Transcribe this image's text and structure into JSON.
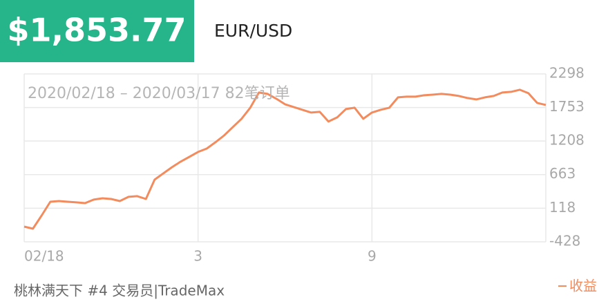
{
  "chart_data": {
    "type": "line",
    "title": "$1,853.77",
    "subtitle": "EUR/USD",
    "annotation": "2020/02/18 – 2020/03/17 82笔订单",
    "footer": "桃林满天下 #4 交易员|TradeMax",
    "categories": [
      "02/18",
      null,
      null,
      null,
      null,
      null,
      null,
      null,
      null,
      null,
      null,
      null,
      null,
      null,
      null,
      null,
      null,
      null,
      null,
      null,
      "3",
      null,
      null,
      null,
      null,
      null,
      null,
      null,
      null,
      null,
      null,
      null,
      null,
      null,
      null,
      null,
      null,
      null,
      null,
      null,
      "9",
      null,
      null,
      null,
      null,
      null,
      null,
      null,
      null,
      null,
      null,
      null,
      null,
      null,
      null,
      null,
      null,
      null,
      null,
      null,
      null
    ],
    "series": [
      {
        "name": "收益",
        "color": "#f28c5e",
        "values": [
          -181,
          -215,
          -2,
          223,
          234,
          223,
          212,
          200,
          257,
          279,
          268,
          234,
          302,
          313,
          268,
          582,
          683,
          784,
          874,
          952,
          1031,
          1087,
          1188,
          1300,
          1435,
          1570,
          1749,
          1996,
          1974,
          1895,
          1805,
          1761,
          1716,
          1671,
          1682,
          1525,
          1592,
          1727,
          1749,
          1570,
          1671,
          1716,
          1749,
          1918,
          1929,
          1929,
          1951,
          1962,
          1974,
          1962,
          1940,
          1906,
          1884,
          1918,
          1940,
          1996,
          2007,
          2041,
          1985,
          1828,
          1794
        ]
      }
    ],
    "ylim": [
      -428,
      2298
    ],
    "yticks": [
      -428,
      118,
      663,
      1208,
      1753,
      2298
    ],
    "grid": true
  }
}
